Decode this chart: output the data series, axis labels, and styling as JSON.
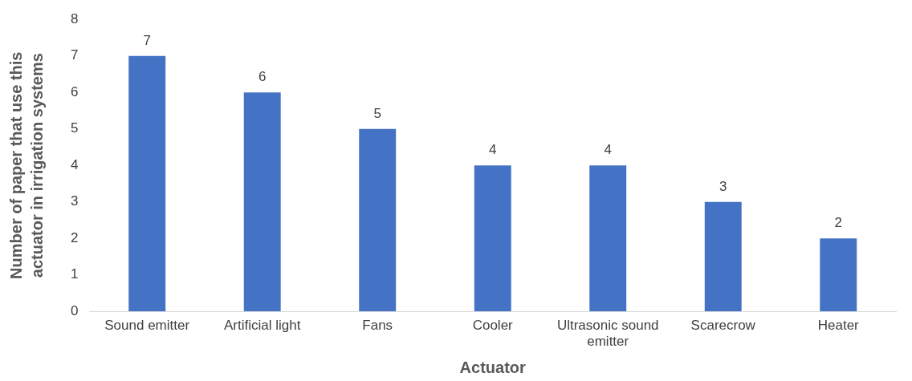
{
  "chart_data": {
    "type": "bar",
    "xlabel": "Actuator",
    "ylabel": "Number of paper that use this actuator in irrigation systems",
    "categories": [
      "Sound emitter",
      "Artificial light",
      "Fans",
      "Cooler",
      "Ultrasonic sound emitter",
      "Scarecrow",
      "Heater"
    ],
    "values": [
      7,
      6,
      5,
      4,
      4,
      3,
      2
    ],
    "color": "#4472c4",
    "ylim": [
      0,
      8
    ],
    "yticks": [
      0,
      1,
      2,
      3,
      4,
      5,
      6,
      7,
      8
    ],
    "grid": false,
    "legend": false,
    "data_labels": true
  }
}
